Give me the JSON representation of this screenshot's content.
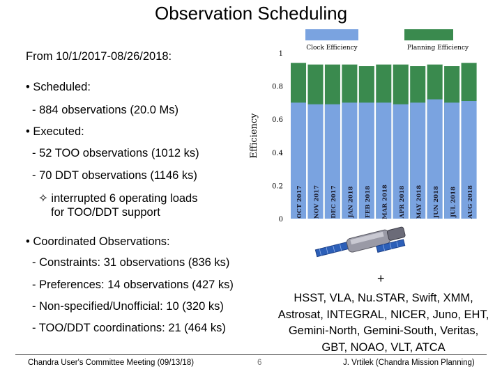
{
  "slide": {
    "title": "Observation Scheduling",
    "period": "From 10/1/2017-08/26/2018:",
    "scheduled_heading": "• Scheduled:",
    "scheduled_item": "- 884 observations (20.0 Ms)",
    "executed_heading": "• Executed:",
    "executed_items": [
      "- 52 TOO observations (1012 ks)",
      "- 70 DDT observations (1146 ks)"
    ],
    "interrupted_line1": "✧ interrupted 6 operating loads",
    "interrupted_line2": "for TOO/DDT support",
    "coordinated_heading": "• Coordinated Observations:",
    "coordinated_items": [
      "- Constraints:  31 observations (836 ks)",
      "- Preferences: 14 observations (427 ks)",
      "- Non-specified/Unofficial: 10 (320 ks)",
      "- TOO/DDT coordinations: 21 (464 ks)"
    ],
    "plus_sign": "+",
    "observatories": "HSST, VLA, Nu.STAR, Swift, XMM, Astrosat, INTEGRAL, NICER, Juno, EHT, Gemini-North, Gemini-South, Veritas, GBT, NOAO, VLT, ATCA",
    "footer_left": "Chandra User's Committee Meeting (09/13/18)",
    "footer_page": "6",
    "footer_right": "J. Vrtilek (Chandra Mission Planning)"
  },
  "chart_data": {
    "type": "bar",
    "title": "",
    "xlabel": "",
    "ylabel": "Efficiency",
    "ylim": [
      0,
      1
    ],
    "yticks": [
      0,
      0.2,
      0.4,
      0.6,
      0.8,
      1
    ],
    "ytick_labels": [
      "0",
      "0.2",
      "0.4",
      "0.6",
      "0.8",
      "1"
    ],
    "categories": [
      "OCT 2017",
      "NOV 2017",
      "DEC 2017",
      "JAN 2018",
      "FEB 2018",
      "MAR 2018",
      "APR 2018",
      "MAY 2018",
      "JUN 2018",
      "JUL 2018",
      "AUG 2018"
    ],
    "series": [
      {
        "name": "Planning Efficiency",
        "color": "#3a8a4e",
        "values": [
          0.94,
          0.93,
          0.93,
          0.93,
          0.92,
          0.93,
          0.93,
          0.92,
          0.93,
          0.92,
          0.94
        ]
      },
      {
        "name": "Clock Efficiency",
        "color": "#7aa3e0",
        "values": [
          0.7,
          0.69,
          0.69,
          0.7,
          0.7,
          0.7,
          0.69,
          0.7,
          0.72,
          0.7,
          0.71
        ]
      }
    ],
    "legend": [
      "Clock Efficiency",
      "Planning Efficiency"
    ]
  }
}
